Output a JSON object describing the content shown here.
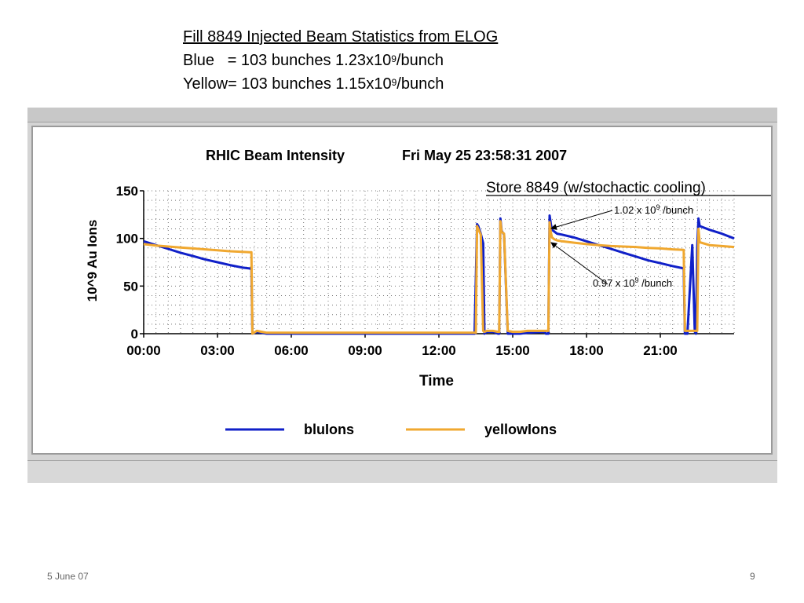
{
  "header": {
    "title": "Fill 8849 Injected Beam Statistics from ELOG",
    "blue_line": {
      "label": "Blue   = 103 bunches 1.23x10",
      "exp": "9",
      "unit": "/bunch"
    },
    "yellow_line": {
      "label": "Yellow= 103 bunches 1.15x10",
      "exp": "9",
      "unit": "/bunch"
    }
  },
  "footer": {
    "date": "5 June 07",
    "page": "9"
  },
  "colors": {
    "blue": "#1020c8",
    "yellow": "#f0a830"
  },
  "chart_data": {
    "type": "line",
    "title": "RHIC Beam Intensity",
    "timestamp": "Fri May 25 23:58:31 2007",
    "xlabel": "Time",
    "ylabel": "10^9 Au Ions",
    "xlim": [
      0,
      24
    ],
    "ylim": [
      0,
      150
    ],
    "x_ticks": [
      0,
      3,
      6,
      9,
      12,
      15,
      18,
      21
    ],
    "x_tick_labels": [
      "00:00",
      "03:00",
      "06:00",
      "09:00",
      "12:00",
      "15:00",
      "18:00",
      "21:00"
    ],
    "y_ticks": [
      0,
      50,
      100,
      150
    ],
    "y_tick_labels": [
      "0",
      "50",
      "100",
      "150"
    ],
    "grid": true,
    "legend": "bottom",
    "series": [
      {
        "name": "bluIons",
        "color": "#1020c8",
        "x": [
          0,
          0.5,
          1,
          1.5,
          2,
          2.5,
          3,
          3.5,
          4,
          4.3,
          4.38,
          4.42,
          4.6,
          4.8,
          5,
          13.3,
          13.45,
          13.5,
          13.55,
          13.6,
          13.7,
          13.8,
          13.85,
          13.95,
          14.2,
          14.4,
          14.45,
          14.5,
          14.55,
          14.6,
          14.65,
          14.8,
          15.0,
          15.1,
          15.2,
          15.3,
          15.6,
          16.3,
          16.35,
          16.45,
          16.5,
          16.55,
          16.6,
          16.7,
          16.8,
          17,
          17.5,
          18,
          18.5,
          19,
          19.5,
          20,
          20.5,
          21,
          21.5,
          21.95,
          22.0,
          22.1,
          22.3,
          22.4,
          22.45,
          22.5,
          22.55,
          22.6,
          23,
          23.5,
          24
        ],
        "y": [
          97,
          93,
          89,
          85,
          81.5,
          78,
          75,
          72,
          69.5,
          68.5,
          68,
          0,
          2,
          1,
          0,
          0,
          0,
          55,
          115,
          113,
          105,
          95,
          0,
          2,
          2,
          0,
          0,
          121,
          108,
          106,
          104,
          0,
          0,
          0,
          0,
          0,
          1,
          2,
          0,
          0,
          124,
          115,
          109,
          107,
          105,
          104,
          101,
          97,
          93,
          89,
          85,
          81,
          77,
          74,
          71,
          68.5,
          0,
          0,
          93,
          2,
          0,
          90,
          121,
          113,
          109,
          105,
          100
        ]
      },
      {
        "name": "yellowIons",
        "color": "#f0a830",
        "x": [
          0,
          0.5,
          1,
          1.5,
          2,
          2.5,
          3,
          3.5,
          4,
          4.3,
          4.38,
          4.42,
          4.6,
          4.8,
          5,
          13.3,
          13.45,
          13.5,
          13.55,
          13.6,
          13.7,
          13.8,
          13.85,
          13.95,
          14.2,
          14.4,
          14.45,
          14.5,
          14.55,
          14.6,
          14.65,
          14.8,
          15.0,
          15.1,
          15.2,
          15.3,
          15.6,
          16.3,
          16.35,
          16.45,
          16.5,
          16.55,
          16.6,
          16.7,
          16.8,
          17,
          17.5,
          18,
          18.5,
          19,
          19.5,
          20,
          20.5,
          21,
          21.5,
          21.95,
          22.0,
          22.1,
          22.3,
          22.4,
          22.45,
          22.5,
          22.55,
          22.6,
          23,
          23.5,
          24
        ],
        "y": [
          94,
          92.5,
          91.5,
          90.5,
          89.5,
          88.5,
          87.5,
          86.5,
          86,
          85.5,
          85.5,
          0,
          3,
          2,
          1,
          1,
          1,
          1,
          113,
          110,
          104,
          3,
          2,
          3,
          3,
          2,
          2,
          118,
          107,
          106,
          105,
          3,
          2,
          2,
          2,
          2,
          3,
          3,
          3,
          3,
          117,
          106,
          101,
          99,
          98,
          97,
          95.5,
          94,
          93,
          92,
          91.5,
          91,
          90,
          89.5,
          88.5,
          88,
          3,
          3,
          3,
          3,
          3,
          3,
          110,
          96,
          93,
          92,
          91
        ]
      }
    ],
    "annotations": {
      "store_label": "Store 8849 (w/stochactic cooling)",
      "upper": {
        "text": "1.02 x 10",
        "exp": "9",
        "unit": " /bunch"
      },
      "lower": {
        "text": "0.97 x 10",
        "exp": "9",
        "unit": " /bunch"
      }
    }
  }
}
